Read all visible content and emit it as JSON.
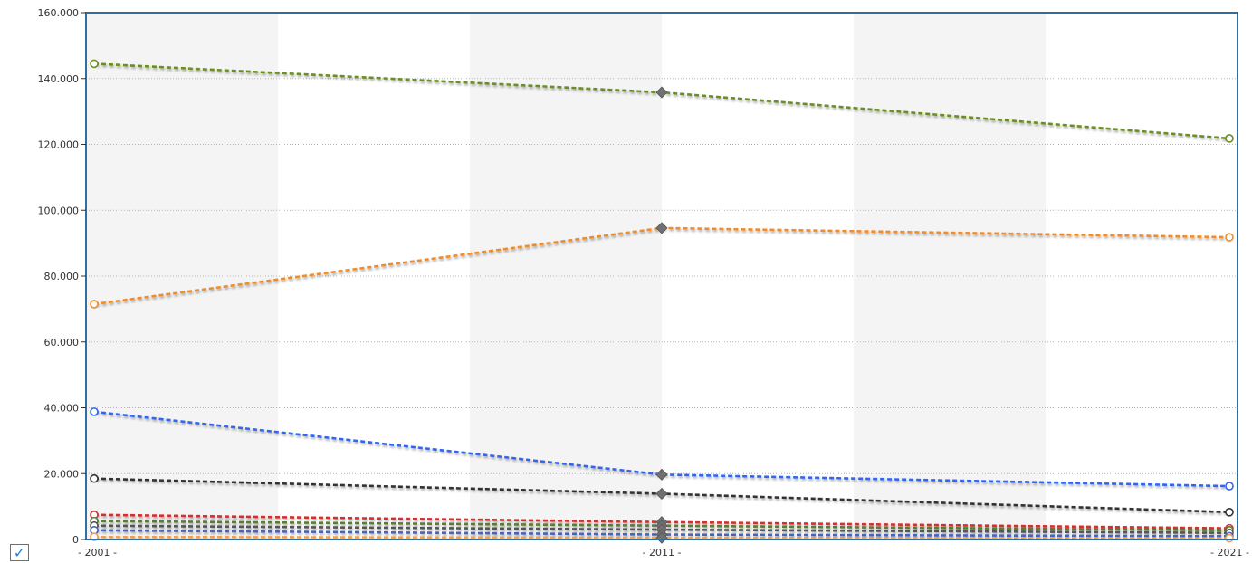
{
  "chart_data": {
    "type": "line",
    "x": [
      "2001",
      "2011",
      "2021"
    ],
    "x_tick_labels": [
      "- 2001 -",
      "- 2011 -",
      "- 2021 -"
    ],
    "ylim": [
      0,
      160000
    ],
    "y_ticks": [
      0,
      20000,
      40000,
      60000,
      80000,
      100000,
      120000,
      140000,
      160000
    ],
    "y_tick_labels": [
      "0",
      "20.000",
      "40.000",
      "60.000",
      "80.000",
      "100.000",
      "120.000",
      "140.000",
      "160.000"
    ],
    "grid": "horizontal dotted",
    "line_style": "dashed",
    "series": [
      {
        "color": "#6b8e23",
        "values": [
          144500,
          135800,
          121800
        ]
      },
      {
        "color": "#f08c2a",
        "values": [
          71500,
          94600,
          91800
        ]
      },
      {
        "color": "#3366ee",
        "values": [
          38800,
          19700,
          16200
        ]
      },
      {
        "color": "#333333",
        "values": [
          18500,
          13900,
          8300
        ]
      },
      {
        "color": "#cc3333",
        "values": [
          7500,
          5300,
          3400
        ]
      },
      {
        "color": "#5c7a3a",
        "values": [
          5600,
          4200,
          2800
        ]
      },
      {
        "color": "#555555",
        "values": [
          4200,
          3000,
          2000
        ]
      },
      {
        "color": "#4a63b5",
        "values": [
          2800,
          1500,
          1000
        ]
      },
      {
        "color": "#f0a050",
        "values": [
          800,
          500,
          400
        ]
      }
    ],
    "colors": {
      "axis": "#2d6ea3",
      "band": "#f4f4f4",
      "grid": "#b4b4b4",
      "marker": "#707070",
      "checkbox": "#2a7fd4"
    }
  },
  "controls": {
    "checkbox_icon": "check-icon",
    "checkbox_glyph": "✓"
  }
}
